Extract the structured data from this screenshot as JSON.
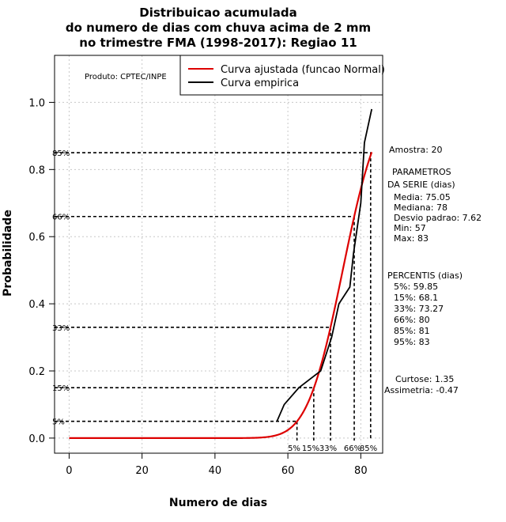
{
  "chart_data": {
    "type": "line",
    "title": [
      "Distribuicao acumulada",
      "do numero de dias com chuva acima de 2 mm",
      "no trimestre FMA (1998-2017): Regiao 11"
    ],
    "xlabel": "Numero de dias",
    "ylabel": "Probabilidade",
    "xlim": [
      -4,
      86
    ],
    "ylim": [
      -0.045,
      1.14
    ],
    "xticks": [
      0,
      20,
      40,
      60,
      80
    ],
    "yticks": [
      0.0,
      0.2,
      0.4,
      0.6,
      0.8,
      1.0
    ],
    "xtick_labels": [
      "0",
      "20",
      "40",
      "60",
      "80"
    ],
    "ytick_labels": [
      "0.0",
      "0.2",
      "0.4",
      "0.6",
      "0.8",
      "1.0"
    ],
    "grid": true,
    "series": [
      {
        "name": "Curva ajustada (funcao Normal)",
        "color": "#dd0000",
        "kind": "normal_cdf",
        "mean": 75.05,
        "sd": 7.62,
        "x_range": [
          0,
          83
        ]
      },
      {
        "name": "Curva empirica",
        "color": "#000000",
        "x": [
          57,
          59,
          63,
          69,
          72,
          74,
          77,
          78,
          80,
          81,
          83
        ],
        "y": [
          0.05,
          0.1,
          0.15,
          0.2,
          0.3,
          0.4,
          0.45,
          0.55,
          0.7,
          0.88,
          0.98
        ]
      }
    ],
    "percentile_lines": [
      {
        "label": "5%",
        "prob": 0.05,
        "x": 62.5
      },
      {
        "label": "15%",
        "prob": 0.15,
        "x": 67.1
      },
      {
        "label": "33%",
        "prob": 0.33,
        "x": 71.7
      },
      {
        "label": "66%",
        "prob": 0.66,
        "x": 78.2
      },
      {
        "label": "85%",
        "prob": 0.85,
        "x": 82.7
      }
    ],
    "y_percent_labels": [
      "5%",
      "15%",
      "33%",
      "66%",
      "85%"
    ],
    "x_percent_labels": [
      "5%",
      "15%",
      "33%",
      "66%",
      "85%"
    ],
    "legend_position": "top-right",
    "annotation": "Produto: CPTEC/INPE"
  },
  "side_panel": {
    "amostra": "Amostra: 20",
    "params_title_1": "PARAMETROS",
    "params_title_2": "DA SERIE (dias)",
    "media": "Media: 75.05",
    "mediana": "Mediana: 78",
    "desvio": "Desvio padrao: 7.62",
    "min": "Min: 57",
    "max": "Max: 83",
    "percentis_title": "PERCENTIS (dias)",
    "p5": "5%: 59.85",
    "p15": "15%: 68.1",
    "p33": "33%: 73.27",
    "p66": "66%: 80",
    "p85": "85%: 81",
    "p95": "95%: 83",
    "curtose": "Curtose: 1.35",
    "assimetria": "Assimetria: -0.47"
  }
}
